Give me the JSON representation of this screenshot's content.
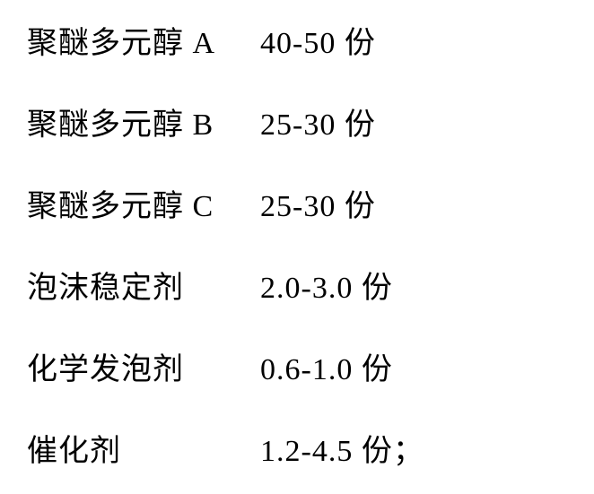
{
  "table": {
    "rows": [
      {
        "label": "聚醚多元醇 A",
        "value": "40-50 份",
        "suffix": ""
      },
      {
        "label": "聚醚多元醇 B",
        "value": "25-30 份",
        "suffix": ""
      },
      {
        "label": "聚醚多元醇 C",
        "value": "25-30 份",
        "suffix": ""
      },
      {
        "label": "泡沫稳定剂",
        "value": "2.0-3.0 份",
        "suffix": ""
      },
      {
        "label": "化学发泡剂",
        "value": "0.6-1.0 份",
        "suffix": ""
      },
      {
        "label": "催化剂",
        "value": "1.2-4.5 份",
        "suffix": "；"
      }
    ],
    "font_size": 34,
    "text_color": "#000000",
    "background_color": "#ffffff",
    "label_column_width": 260,
    "row_spacing": 42
  }
}
